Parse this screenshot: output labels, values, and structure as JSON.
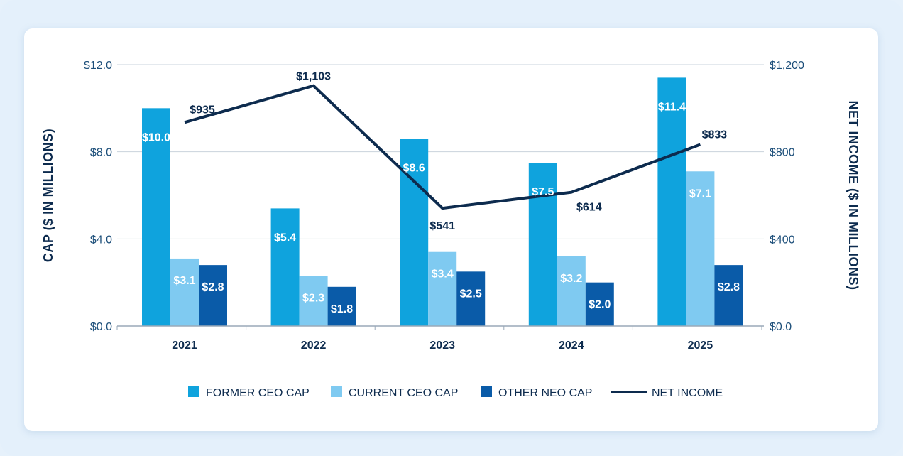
{
  "chart_data": {
    "type": "bar",
    "categories": [
      "2021",
      "2022",
      "2023",
      "2024",
      "2025"
    ],
    "series": [
      {
        "name": "FORMER CEO CAP",
        "axis": "left",
        "color": "#0fa3dd",
        "values": [
          10.0,
          5.4,
          8.6,
          7.5,
          11.4
        ],
        "labels": [
          "$10.0",
          "$5.4",
          "$8.6",
          "$7.5",
          "$11.4"
        ]
      },
      {
        "name": "CURRENT CEO CAP",
        "axis": "left",
        "color": "#7fcaf1",
        "values": [
          3.1,
          2.3,
          3.4,
          3.2,
          7.1
        ],
        "labels": [
          "$3.1",
          "$2.3",
          "$3.4",
          "$3.2",
          "$7.1"
        ]
      },
      {
        "name": "OTHER NEO CAP",
        "axis": "left",
        "color": "#0a5ba8",
        "values": [
          2.8,
          1.8,
          2.5,
          2.0,
          2.8
        ],
        "labels": [
          "$2.8",
          "$1.8",
          "$2.5",
          "$2.0",
          "$2.8"
        ]
      }
    ],
    "line_series": {
      "name": "NET INCOME",
      "axis": "right",
      "color": "#0d2b4e",
      "values": [
        935,
        1103,
        541,
        614,
        833
      ],
      "labels": [
        "$935",
        "$1,103",
        "$541",
        "$614",
        "$833"
      ]
    },
    "left_axis": {
      "title": "CAP ($ IN MILLIONS)",
      "range": [
        0,
        12
      ],
      "ticks": [
        0,
        4,
        8,
        12
      ],
      "tick_labels": [
        "$0.0",
        "$4.0",
        "$8.0",
        "$12.0"
      ]
    },
    "right_axis": {
      "title": "NET INCOME ($ IN MILLIONS)",
      "range": [
        0,
        1200
      ],
      "ticks": [
        0,
        400,
        800,
        1200
      ],
      "tick_labels": [
        "$0.0",
        "$400",
        "$800",
        "$1,200"
      ]
    },
    "legend": {
      "position": "bottom",
      "entries": [
        "FORMER CEO CAP",
        "CURRENT CEO CAP",
        "OTHER NEO CAP",
        "NET INCOME"
      ]
    },
    "grid": true
  }
}
